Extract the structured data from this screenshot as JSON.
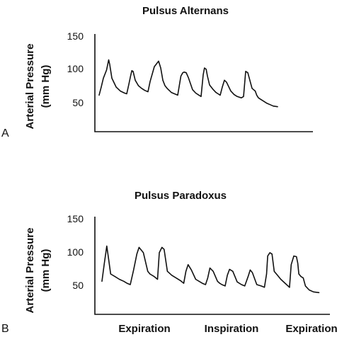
{
  "chart_data": [
    {
      "type": "line",
      "panel_label": "A",
      "title": "Pulsus Alternans",
      "ylabel": "Arterial Pressure\n(mm Hg)",
      "ylabel_lines": [
        "Arterial Pressure",
        "(mm Hg)"
      ],
      "yticks": [
        50,
        100,
        150
      ],
      "ylim": [
        30,
        160
      ],
      "xlim": [
        0,
        100
      ],
      "grid": false,
      "series": [
        {
          "values_x": [
            0,
            1,
            2,
            3.5,
            4.5,
            5,
            6,
            8,
            10,
            12,
            13,
            14,
            14.8,
            15.4,
            16,
            17,
            18.5,
            20,
            21.5,
            23,
            24,
            26,
            28,
            29,
            30,
            31,
            32,
            33,
            34,
            35.5,
            37,
            38.5,
            39.4,
            40,
            41,
            42,
            44,
            45.5,
            47,
            48,
            49,
            49.6,
            50.4,
            51,
            52,
            53.5,
            55,
            56,
            57,
            58,
            59,
            60,
            62,
            63.5,
            65,
            66,
            67,
            68,
            69,
            70,
            72,
            73.5,
            74.2,
            75,
            76,
            77,
            79,
            80.5,
            82,
            84
          ],
          "values_y": [
            60,
            72,
            85,
            97,
            112,
            105,
            85,
            72,
            66,
            63,
            62,
            76,
            88,
            96,
            95,
            82,
            74,
            70,
            67,
            65,
            80,
            102,
            110,
            100,
            82,
            74,
            70,
            67,
            64,
            62,
            60,
            88,
            93,
            94,
            93,
            86,
            68,
            63,
            60,
            58,
            90,
            100,
            98,
            88,
            75,
            69,
            64,
            62,
            60,
            72,
            82,
            79,
            66,
            61,
            58,
            57,
            56,
            58,
            95,
            93,
            70,
            66,
            60,
            56,
            54,
            52,
            48,
            46,
            44,
            43
          ]
        }
      ]
    },
    {
      "type": "line",
      "panel_label": "B",
      "title": "Pulsus Paradoxus",
      "ylabel": "Arterial Pressure\n(mm Hg)",
      "ylabel_lines": [
        "Arterial Pressure",
        "(mm Hg)"
      ],
      "yticks": [
        50,
        100,
        150
      ],
      "ylim": [
        30,
        160
      ],
      "xlim": [
        0,
        100
      ],
      "grid": false,
      "categories": [
        "Expiration",
        "Inspiration",
        "Expiration"
      ],
      "series": [
        {
          "values_x": [
            0,
            1,
            2.2,
            3,
            4,
            6,
            8,
            10,
            11.5,
            13,
            14.5,
            16,
            17,
            19,
            21,
            22,
            24,
            25.5,
            26.3,
            27.5,
            28.5,
            30,
            32,
            34,
            36,
            37.5,
            38.5,
            39.5,
            41,
            43,
            45,
            46,
            47.5,
            48.5,
            49.5,
            51,
            53,
            54,
            55,
            56.5,
            57.5,
            58.5,
            60,
            62,
            64,
            65.5,
            67,
            68,
            69,
            71,
            73,
            74.5,
            75.5,
            76,
            77,
            78,
            79,
            80.5,
            82,
            84,
            86
          ],
          "values_y": [
            55,
            80,
            108,
            90,
            66,
            62,
            58,
            55,
            52,
            50,
            72,
            96,
            106,
            98,
            70,
            66,
            62,
            58,
            98,
            106,
            103,
            70,
            64,
            60,
            56,
            52,
            70,
            80,
            72,
            58,
            54,
            52,
            50,
            60,
            75,
            70,
            55,
            52,
            50,
            48,
            64,
            73,
            70,
            54,
            50,
            48,
            62,
            72,
            68,
            50,
            48,
            46,
            66,
            93,
            98,
            96,
            70,
            64,
            58,
            52,
            46
          ]
        },
        {
          "values_x": [
            86,
            86.8,
            88,
            89.2,
            89.8,
            90.3,
            91.3,
            92.3,
            93.3,
            95,
            97,
            99.5
          ],
          "values_y": [
            46,
            80,
            93,
            92,
            82,
            66,
            62,
            60,
            48,
            42,
            39,
            38
          ]
        }
      ]
    }
  ]
}
